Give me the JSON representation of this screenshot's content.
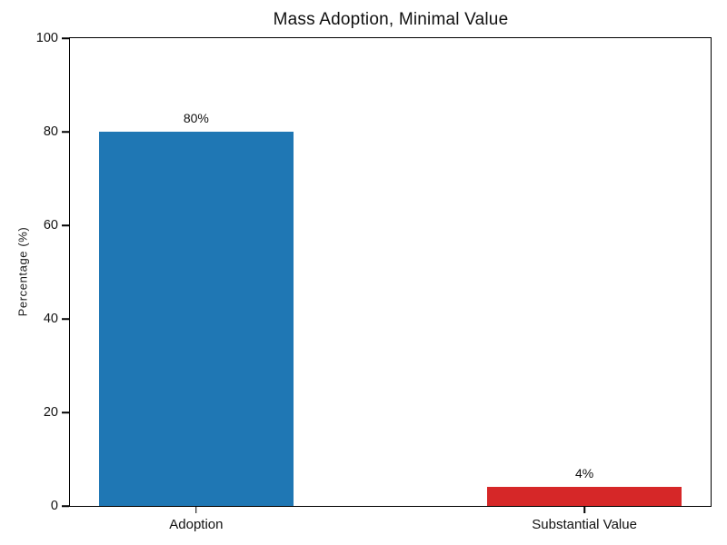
{
  "figure": {
    "background": "#ffffff",
    "spine_color": "#000000"
  },
  "chart_data": {
    "type": "bar",
    "title": "Mass Adoption, Minimal Value",
    "categories": [
      "Adoption",
      "Substantial Value"
    ],
    "values": [
      80,
      4
    ],
    "value_labels": [
      "80%",
      "4%"
    ],
    "bar_colors": [
      "#1f77b4",
      "#d62728"
    ],
    "xlabel": "",
    "ylabel": "Percentage (%)",
    "ylim": [
      0,
      100
    ],
    "yticks": [
      0,
      20,
      40,
      60,
      80,
      100
    ],
    "grid": false,
    "legend": "none",
    "layout": {
      "bar_centers_pct": [
        19.7,
        80.3
      ],
      "bar_width_pct": 30.3
    }
  }
}
